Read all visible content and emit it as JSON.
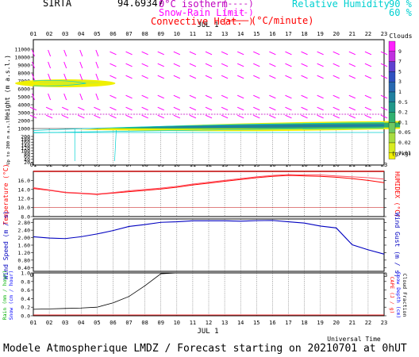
{
  "header": {
    "site": "SIRTA",
    "coords": "94.69347",
    "legend_iso": "0°C isotherm",
    "legend_snow": "Snow-Rain Limit",
    "legend_conv": "Convective Heat.",
    "legend_iso_sym": "(----)",
    "legend_snow_sym": "(----)",
    "legend_conv_sym": "(────)",
    "legend_conv_unit": "(°C/minute)",
    "rh_label": "Relative Humidity",
    "rh_90": "90 %",
    "rh_60": "60 %"
  },
  "hours": [
    "01",
    "02",
    "03",
    "04",
    "05",
    "06",
    "07",
    "08",
    "09",
    "10",
    "11",
    "12",
    "13",
    "14",
    "15",
    "16",
    "17",
    "18",
    "19",
    "20",
    "21",
    "22",
    "23"
  ],
  "date_label": "JUL  1",
  "footer": "Modele Atmospherique LMDZ / Forecast starting on 20210701 at 0hUT",
  "xlabel": "Universal Time",
  "clouds": {
    "title": "Clouds",
    "unit": "(g/kg)",
    "levels": [
      "9",
      "7",
      "5",
      "3",
      "1",
      "0.5",
      "0.2",
      "0.1",
      "0.05",
      "0.02",
      "0.01"
    ],
    "colors": [
      "#f0f000",
      "#d8ec20",
      "#a8dc40",
      "#70c860",
      "#30b070",
      "#20988a",
      "#2080a0",
      "#2868b0",
      "#3050c0",
      "#6040d0",
      "#c030e0",
      "#ff20ff"
    ]
  },
  "colors": {
    "wind_barb": "#ff00ff",
    "isotherm": "#c000c0",
    "rh": "#00d0d0",
    "temperature": "#ff0000",
    "humidex": "#ff0000",
    "wind": "#0000c0",
    "rain": "#000000"
  },
  "chart_data": [
    {
      "type": "heatmap",
      "title": "Clouds",
      "ylabel": "Height  (m a.s.l.)",
      "ylabel2": "Up to 200 m a.s.l.",
      "y_ticks_main": [
        1000,
        2000,
        3000,
        4000,
        5000,
        6000,
        7000,
        8000,
        9000,
        10000,
        11000
      ],
      "y_ticks_low": [
        20,
        40,
        60,
        80,
        100,
        120,
        140,
        160,
        180,
        200
      ],
      "isotherm_height_m": 2800,
      "cloud_layers": [
        {
          "name": "upper",
          "height_m": 6700,
          "from_hour": 0,
          "to_hour": 4.5,
          "max_gkg": 0.2
        },
        {
          "name": "lower",
          "height_m": 1350,
          "from_hour": 2.8,
          "to_hour": 23,
          "max_gkg": 0.1
        }
      ]
    },
    {
      "type": "line",
      "ylabel": "Temperature (°C)",
      "ylabel2": "HUMIDEX (°C)",
      "ylim": [
        8,
        18
      ],
      "y_ticks": [
        "8.0",
        "10.0",
        "12.0",
        "14.0",
        "16.0"
      ],
      "x": [
        1,
        2,
        3,
        4,
        5,
        6,
        7,
        8,
        9,
        10,
        11,
        12,
        13,
        14,
        15,
        16,
        17,
        18,
        19,
        20,
        21,
        22,
        23
      ],
      "series": [
        {
          "name": "Temperature",
          "values": [
            14.2,
            13.8,
            13.3,
            13.1,
            12.9,
            13.2,
            13.5,
            13.8,
            14.1,
            14.5,
            15.0,
            15.4,
            15.8,
            16.2,
            16.6,
            16.9,
            17.1,
            17.0,
            16.9,
            16.7,
            16.4,
            16.0,
            15.5
          ]
        },
        {
          "name": "HUMIDEX",
          "values": [
            14.4,
            13.9,
            13.4,
            13.2,
            13.0,
            13.3,
            13.7,
            14.0,
            14.3,
            14.7,
            15.2,
            15.6,
            16.0,
            16.4,
            16.8,
            17.1,
            17.3,
            17.2,
            17.2,
            17.0,
            16.8,
            16.6,
            16.3
          ]
        }
      ]
    },
    {
      "type": "line",
      "ylabel": "Wind Speed (m / s)",
      "ylabel2": "Wind Gust (m / s)",
      "ylim": [
        0.2,
        3.0
      ],
      "y_ticks": [
        "0.40",
        "0.80",
        "1.20",
        "1.60",
        "2.00",
        "2.40",
        "2.80"
      ],
      "x": [
        1,
        2,
        3,
        4,
        5,
        6,
        7,
        8,
        9,
        10,
        11,
        12,
        13,
        14,
        15,
        16,
        17,
        18,
        19,
        20,
        21,
        22,
        23
      ],
      "series": [
        {
          "name": "Wind Speed",
          "values": [
            2.05,
            1.98,
            1.95,
            2.05,
            2.2,
            2.38,
            2.6,
            2.7,
            2.82,
            2.85,
            2.9,
            2.9,
            2.9,
            2.88,
            2.91,
            2.92,
            2.85,
            2.78,
            2.62,
            2.52,
            1.62,
            1.35,
            1.12
          ]
        }
      ]
    },
    {
      "type": "line",
      "ylabel": "Rain (mm / hour)",
      "ylabel2": "Snow (cm / hour)",
      "ylabel3": "CAPE (J / g)",
      "ylabel4": "Snow Depth (cm)",
      "ylabel5": "Cloud Fraction",
      "ylim": [
        0.0,
        1.0
      ],
      "y_ticks": [
        "0.0",
        "0.2",
        "0.4",
        "0.6",
        "0.8",
        "1.0"
      ],
      "x": [
        1,
        2,
        3,
        4,
        5,
        6,
        7,
        8,
        9,
        10,
        11,
        12,
        13,
        14,
        15,
        16,
        17,
        18,
        19,
        20,
        21,
        22,
        23
      ],
      "series": [
        {
          "name": "Cloud Fraction",
          "values": [
            0.15,
            0.16,
            0.17,
            0.18,
            0.2,
            0.3,
            0.45,
            0.7,
            0.98,
            1.0,
            1.0,
            1.0,
            1.0,
            1.0,
            1.0,
            1.0,
            1.0,
            1.0,
            1.0,
            1.0,
            1.0,
            1.0,
            1.0
          ]
        }
      ]
    }
  ]
}
